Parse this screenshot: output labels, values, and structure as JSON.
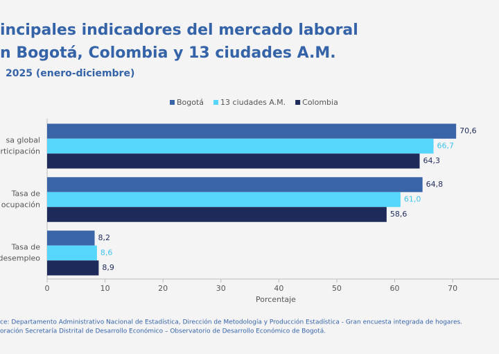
{
  "chart_data": {
    "type": "hbar",
    "title": [
      "incipales indicadores del mercado laboral",
      "n Bogotá, Colombia y 13 ciudades A.M."
    ],
    "subtitle": "2025 (enero-diciembre)",
    "categories": [
      [
        "sa global",
        "articipación"
      ],
      [
        "Tasa de",
        "ocupación"
      ],
      [
        "Tasa de",
        "desempleo"
      ]
    ],
    "series": [
      {
        "name": "Bogotá",
        "color": "#3a64a8",
        "label_color": "#1e2a5a",
        "values": [
          70.6,
          64.8,
          8.2
        ],
        "value_labels": [
          "70,6",
          "64,8",
          "8,2"
        ]
      },
      {
        "name": "13 ciudades A.M.",
        "color": "#57d6fb",
        "label_color": "#3fc3ee",
        "values": [
          66.7,
          61.0,
          8.6
        ],
        "value_labels": [
          "66,7",
          "61,0",
          "8,6"
        ]
      },
      {
        "name": "Colombia",
        "color": "#1e2a5a",
        "label_color": "#1e2a5a",
        "values": [
          64.3,
          58.6,
          8.9
        ],
        "value_labels": [
          "64,3",
          "58,6",
          "8,9"
        ]
      }
    ],
    "xlabel": "Porcentaje",
    "xlim": [
      0,
      78
    ],
    "xticks": [
      0,
      10,
      20,
      30,
      40,
      50,
      60,
      70
    ],
    "legend": "top",
    "notes": [
      "ce: Departamento Administrativo Nacional de Estadística, Dirección de Metodología y Producción Estadística - Gran encuesta integrada de hogares.",
      "oración Secretaría Distrital de Desarrollo Económico – Observatorio de Desarrollo Económico de Bogotá."
    ]
  }
}
